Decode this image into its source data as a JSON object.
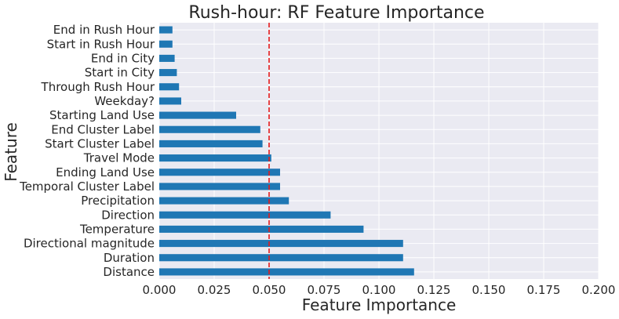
{
  "chart_data": {
    "type": "bar",
    "orientation": "horizontal",
    "title": "Rush-hour: RF Feature Importance",
    "xlabel": "Feature Importance",
    "ylabel": "Feature",
    "xlim": [
      0.0,
      0.2
    ],
    "x_ticks": [
      "0.000",
      "0.025",
      "0.050",
      "0.075",
      "0.100",
      "0.125",
      "0.150",
      "0.175",
      "0.200"
    ],
    "x_tick_values": [
      0.0,
      0.025,
      0.05,
      0.075,
      0.1,
      0.125,
      0.15,
      0.175,
      0.2
    ],
    "categories": [
      "Distance",
      "Duration",
      "Directional magnitude",
      "Temperature",
      "Direction",
      "Precipitation",
      "Temporal Cluster Label",
      "Ending Land Use",
      "Travel Mode",
      "Start Cluster Label",
      "End Cluster Label",
      "Starting Land Use",
      "Weekday?",
      "Through Rush Hour",
      "Start in City",
      "End in City",
      "Start in Rush Hour",
      "End in Rush Hour"
    ],
    "values": [
      0.116,
      0.111,
      0.111,
      0.093,
      0.078,
      0.059,
      0.055,
      0.055,
      0.051,
      0.047,
      0.046,
      0.035,
      0.01,
      0.009,
      0.008,
      0.007,
      0.006,
      0.006
    ],
    "reference_line": {
      "value": 0.05,
      "color": "#e41a1c",
      "style": "dashed"
    },
    "grid": true,
    "colors": {
      "bar": "#1f77b4",
      "background": "#eaeaf2",
      "grid": "#ffffff",
      "text": "#262626"
    }
  }
}
